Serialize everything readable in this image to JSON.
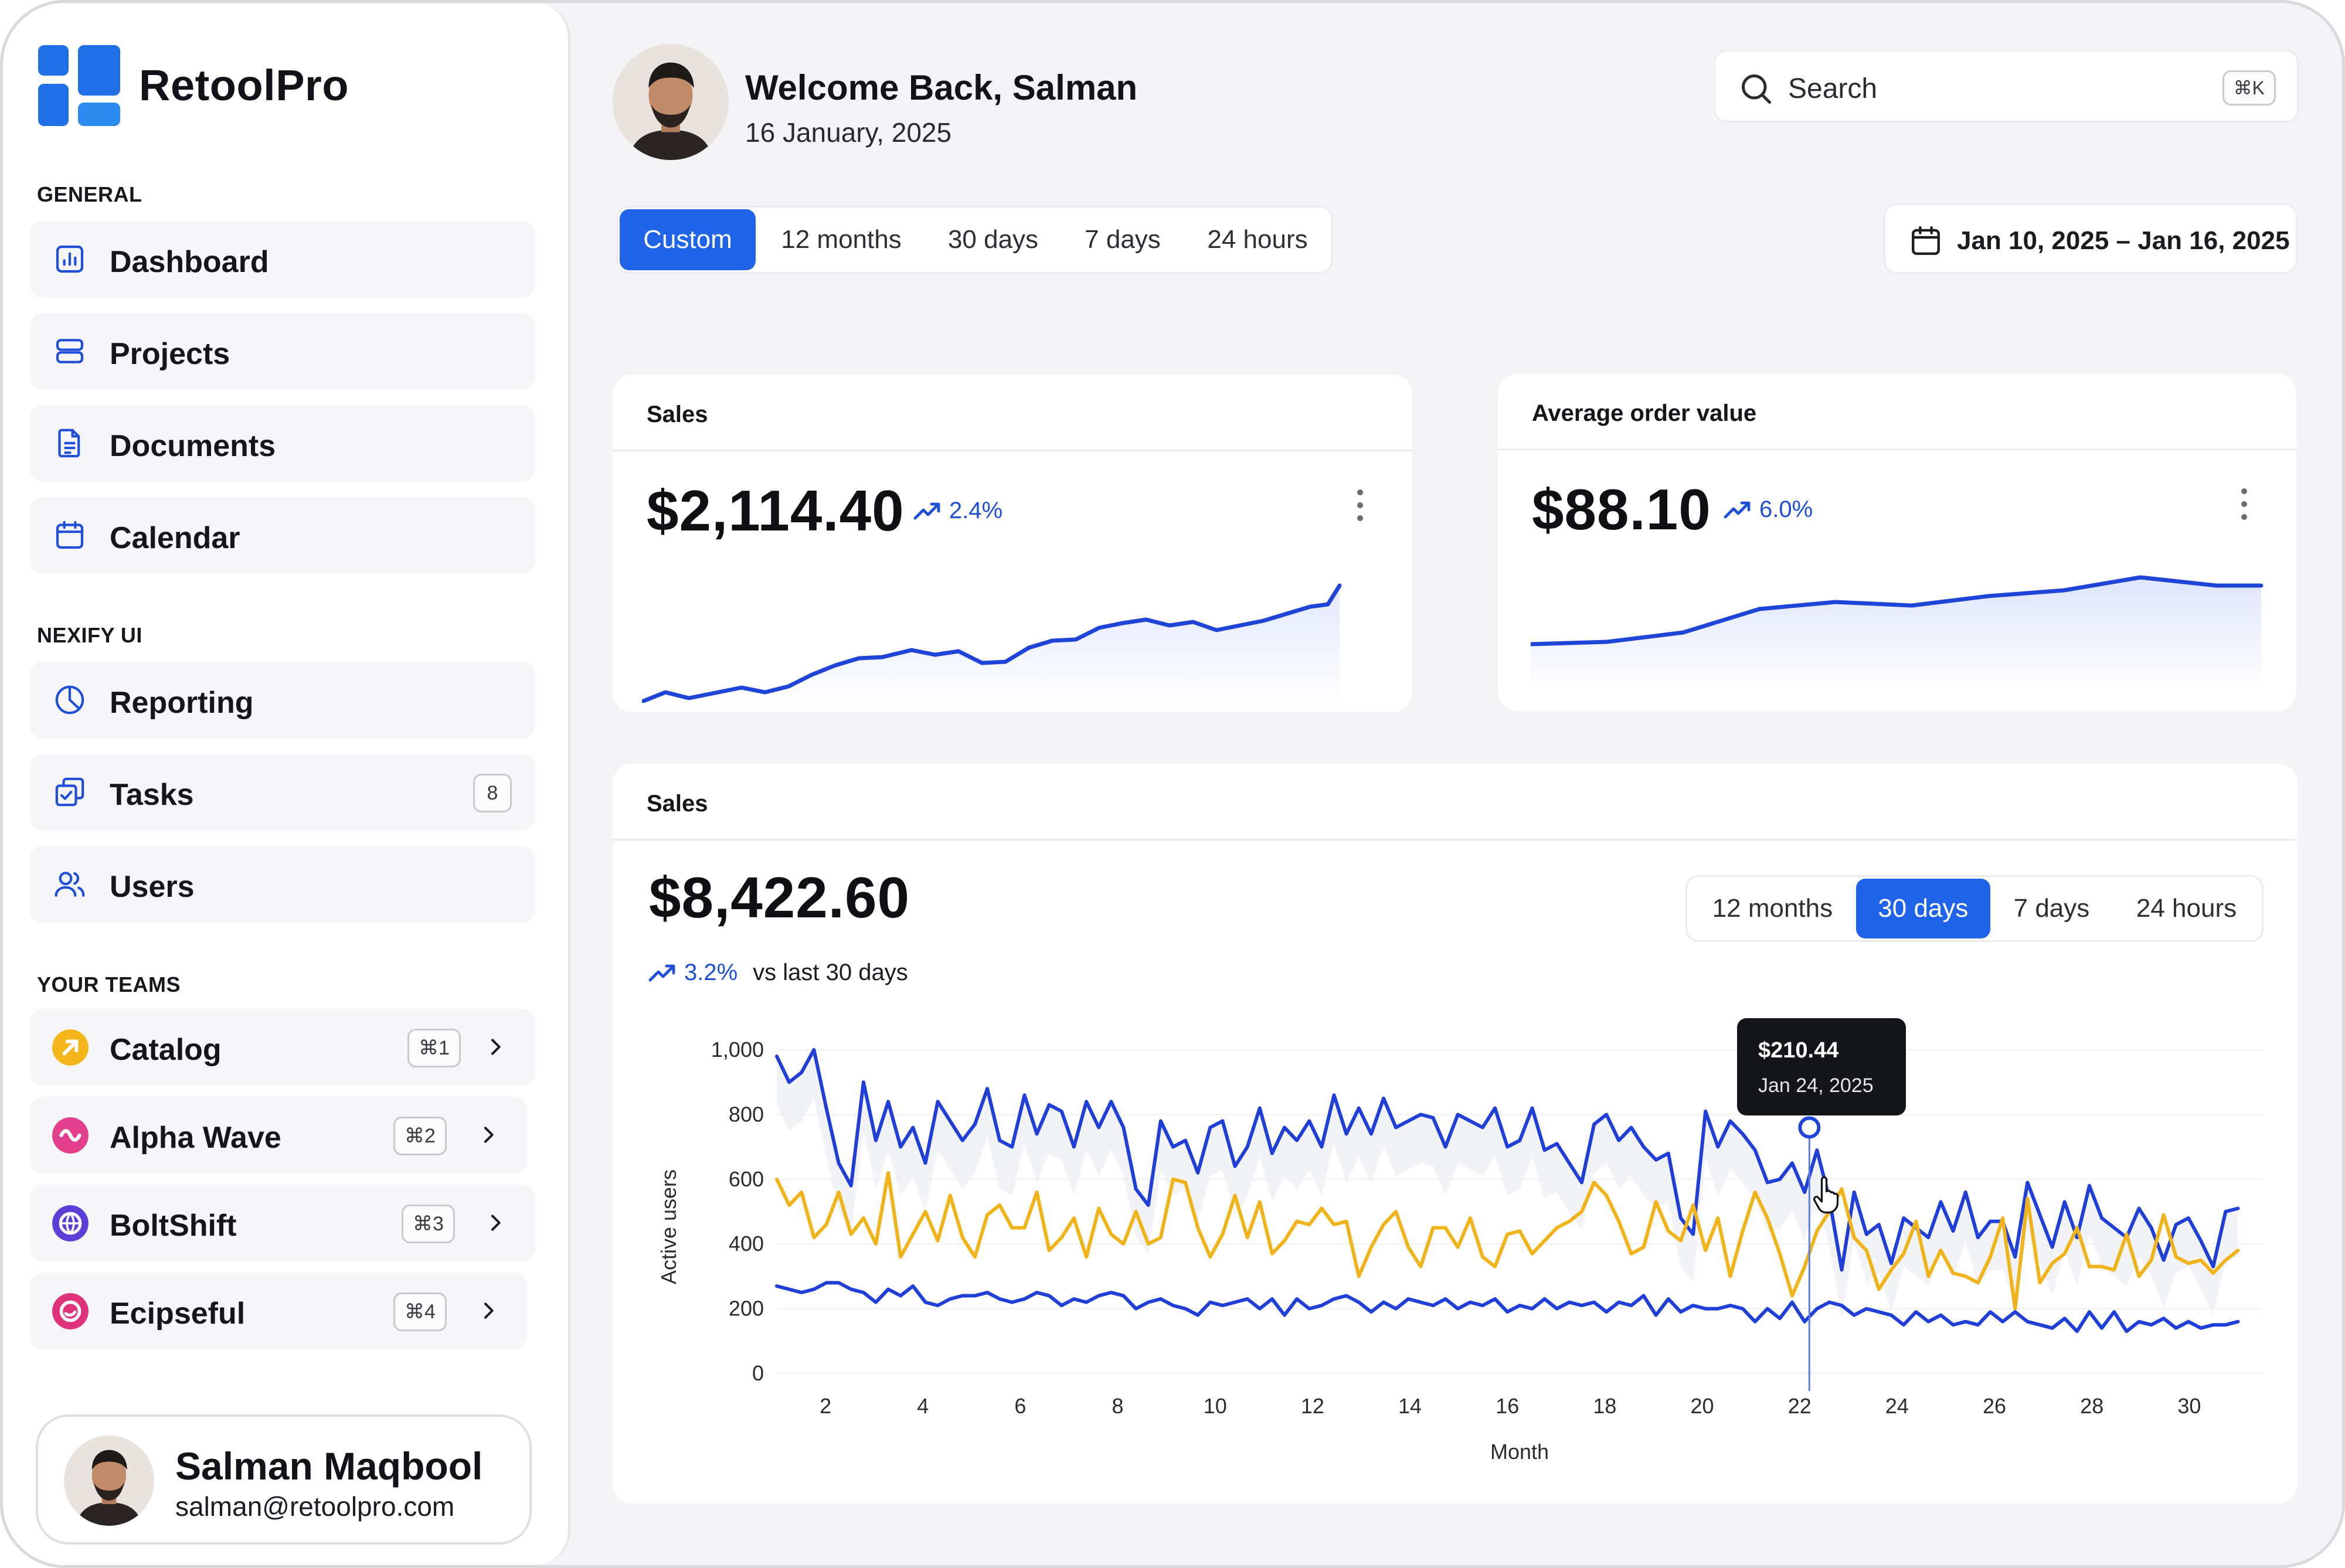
{
  "brand": "RetoolPro",
  "sidebar": {
    "general_title": "GENERAL",
    "general": [
      {
        "label": "Dashboard",
        "icon": "bar-chart-icon"
      },
      {
        "label": "Projects",
        "icon": "server-icon"
      },
      {
        "label": "Documents",
        "icon": "document-icon"
      },
      {
        "label": "Calendar",
        "icon": "calendar-icon"
      }
    ],
    "nexify_title": "NEXIFY UI",
    "nexify": [
      {
        "label": "Reporting",
        "icon": "pie-chart-icon"
      },
      {
        "label": "Tasks",
        "icon": "tasks-icon",
        "badge": "8"
      },
      {
        "label": "Users",
        "icon": "users-icon"
      }
    ],
    "teams_title": "YOUR TEAMS",
    "teams": [
      {
        "label": "Catalog",
        "shortcut": "⌘1",
        "color": "#f4b61a"
      },
      {
        "label": "Alpha Wave",
        "shortcut": "⌘2",
        "color": "#e43f8c"
      },
      {
        "label": "BoltShift",
        "shortcut": "⌘3",
        "color": "#5b3fd6"
      },
      {
        "label": "Ecipseful",
        "shortcut": "⌘4",
        "color": "#e0317b"
      }
    ],
    "user": {
      "name": "Salman Maqbool",
      "email": "salman@retoolpro.com"
    }
  },
  "header": {
    "welcome": "Welcome Back, Salman",
    "date": "16 January, 2025",
    "search_placeholder": "Search",
    "search_shortcut": "⌘K",
    "range_tabs": [
      "Custom",
      "12 months",
      "30 days",
      "7 days",
      "24 hours"
    ],
    "active_range": "Custom",
    "date_range": "Jan 10, 2025 – Jan 16, 2025"
  },
  "sales_card": {
    "title": "Sales",
    "value": "$2,114.40",
    "delta": "2.4%"
  },
  "aov_card": {
    "title": "Average order value",
    "value": "$88.10",
    "delta": "6.0%"
  },
  "sales_chart_card": {
    "title": "Sales",
    "value": "$8,422.60",
    "delta": "3.2%",
    "delta_caption": "vs last 30 days",
    "tabs": [
      "12 months",
      "30 days",
      "7 days",
      "24 hours"
    ],
    "active_tab": "30 days",
    "tooltip_value": "$210.44",
    "tooltip_date": "Jan 24, 2025"
  },
  "chart_data": {
    "type": "line",
    "xlabel": "Month",
    "ylabel": "Active users",
    "ylim": [
      0,
      1000
    ],
    "yticks": [
      "0",
      "200",
      "400",
      "600",
      "800",
      "1,000"
    ],
    "xticks": [
      "2",
      "4",
      "6",
      "8",
      "10",
      "12",
      "14",
      "16",
      "18",
      "20",
      "22",
      "24",
      "26",
      "28",
      "30"
    ],
    "xlim": [
      1,
      31.5
    ],
    "colors": {
      "primary": "#1f3fd8",
      "secondary": "#f0b31a"
    },
    "series": [
      {
        "color": "#1f3fd8",
        "values": [
          980,
          900,
          930,
          1000,
          820,
          650,
          580,
          900,
          720,
          840,
          700,
          760,
          650,
          840,
          780,
          720,
          770,
          880,
          720,
          700,
          860,
          740,
          830,
          810,
          700,
          840,
          760,
          840,
          760,
          570,
          520,
          780,
          700,
          720,
          620,
          760,
          780,
          640,
          700,
          820,
          680,
          760,
          720,
          780,
          700,
          860,
          740,
          820,
          740,
          850,
          760,
          780,
          800,
          790,
          700,
          800,
          780,
          760,
          820,
          700,
          720,
          820,
          690,
          710,
          650,
          590,
          770,
          800,
          720,
          760,
          700,
          660,
          680,
          480,
          430,
          810,
          700,
          780,
          740,
          690,
          590,
          600,
          650,
          560,
          690,
          540,
          320,
          560,
          430,
          460,
          340,
          480,
          450,
          420,
          530,
          440,
          560,
          420,
          470,
          470,
          360,
          590,
          490,
          390,
          530,
          420,
          580,
          480,
          450,
          420,
          510,
          450,
          350,
          460,
          480,
          410,
          330,
          500,
          510
        ]
      },
      {
        "color": "#f0b31a",
        "values": [
          600,
          520,
          560,
          420,
          460,
          560,
          430,
          480,
          400,
          620,
          360,
          430,
          500,
          410,
          550,
          420,
          360,
          490,
          520,
          450,
          450,
          560,
          380,
          420,
          480,
          360,
          510,
          430,
          400,
          500,
          400,
          420,
          600,
          590,
          450,
          360,
          430,
          550,
          420,
          530,
          370,
          410,
          470,
          460,
          510,
          460,
          470,
          300,
          390,
          460,
          500,
          390,
          330,
          450,
          450,
          390,
          480,
          360,
          330,
          430,
          440,
          370,
          410,
          450,
          470,
          500,
          590,
          550,
          470,
          370,
          390,
          530,
          440,
          410,
          520,
          380,
          480,
          300,
          440,
          560,
          480,
          370,
          240,
          330,
          440,
          500,
          570,
          420,
          380,
          260,
          320,
          370,
          470,
          300,
          380,
          310,
          300,
          280,
          360,
          480,
          200,
          540,
          280,
          340,
          370,
          450,
          330,
          330,
          320,
          430,
          300,
          350,
          490,
          360,
          340,
          350,
          310,
          350,
          380
        ]
      },
      {
        "color": "#1f3fd8",
        "values": [
          270,
          260,
          250,
          260,
          280,
          280,
          260,
          250,
          220,
          260,
          240,
          270,
          220,
          210,
          230,
          240,
          240,
          250,
          230,
          220,
          230,
          250,
          240,
          210,
          230,
          220,
          240,
          250,
          240,
          200,
          220,
          230,
          210,
          200,
          180,
          220,
          210,
          220,
          230,
          200,
          230,
          180,
          230,
          200,
          210,
          230,
          240,
          220,
          190,
          220,
          200,
          230,
          220,
          210,
          230,
          200,
          220,
          210,
          230,
          190,
          210,
          200,
          230,
          200,
          220,
          210,
          220,
          190,
          220,
          210,
          240,
          180,
          230,
          190,
          210,
          200,
          200,
          210,
          200,
          160,
          200,
          170,
          220,
          160,
          200,
          220,
          210,
          180,
          200,
          190,
          180,
          150,
          190,
          160,
          180,
          150,
          160,
          150,
          190,
          160,
          190,
          160,
          150,
          140,
          170,
          130,
          190,
          140,
          190,
          130,
          160,
          150,
          170,
          140,
          160,
          140,
          150,
          150,
          160
        ]
      }
    ],
    "marker": {
      "x": 22.2,
      "y": 760
    }
  }
}
